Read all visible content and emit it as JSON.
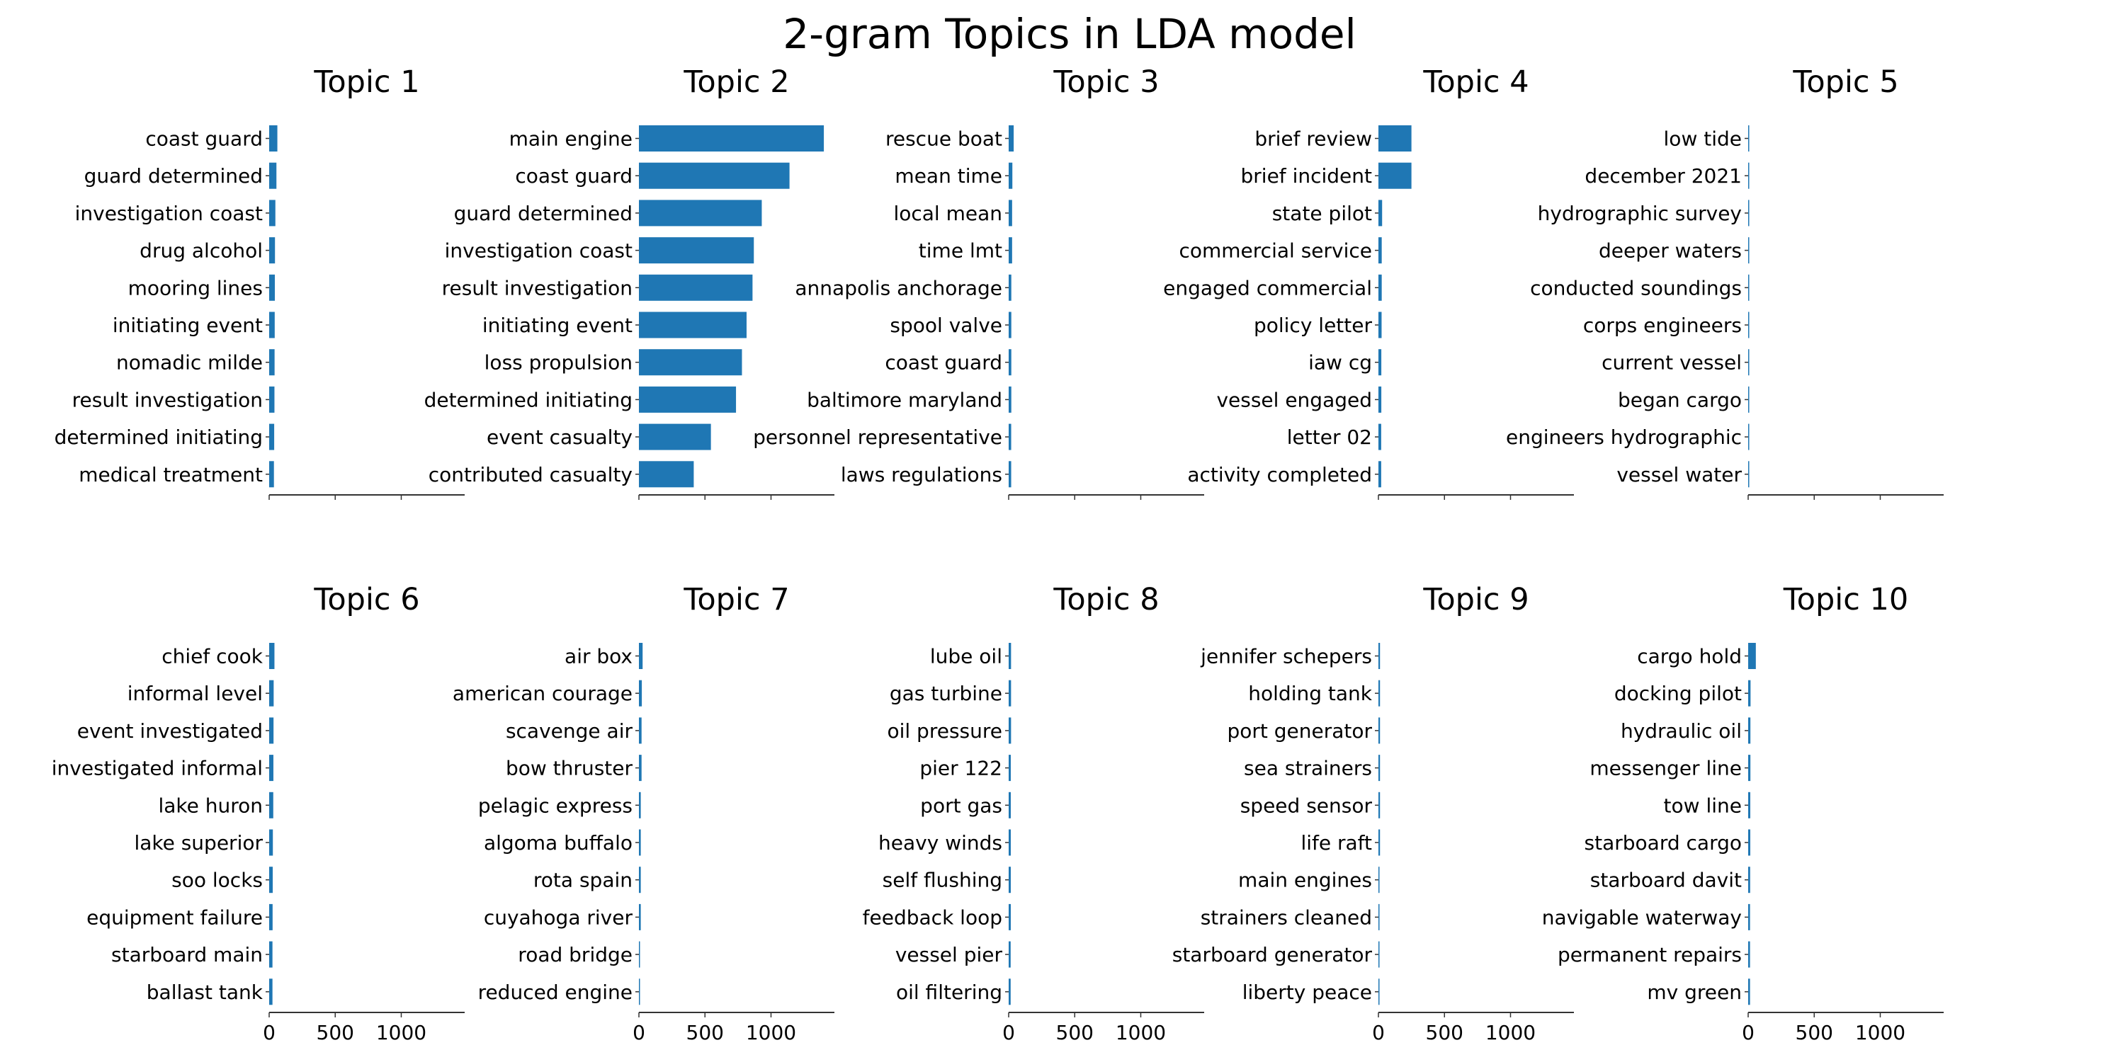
{
  "figure": {
    "title": "2-gram Topics in LDA model"
  },
  "bar_color": "#1f77b4",
  "chart_data": [
    {
      "type": "bar",
      "title": "Topic 1",
      "xlim": [
        0,
        1480
      ],
      "categories": [
        "coast guard",
        "guard determined",
        "investigation coast",
        "drug alcohol",
        "mooring lines",
        "initiating event",
        "nomadic milde",
        "result investigation",
        "determined initiating",
        "medical treatment"
      ],
      "values": [
        62,
        55,
        47,
        44,
        43,
        42,
        41,
        40,
        38,
        36
      ],
      "xticks": [
        0,
        500,
        1000
      ],
      "show_tick_labels": false
    },
    {
      "type": "bar",
      "title": "Topic 2",
      "xlim": [
        0,
        1480
      ],
      "categories": [
        "main engine",
        "coast guard",
        "guard determined",
        "investigation coast",
        "result investigation",
        "initiating event",
        "loss propulsion",
        "determined initiating",
        "event casualty",
        "contributed casualty"
      ],
      "values": [
        1400,
        1140,
        930,
        870,
        860,
        815,
        780,
        735,
        545,
        415
      ],
      "xticks": [
        0,
        500,
        1000
      ],
      "show_tick_labels": false
    },
    {
      "type": "bar",
      "title": "Topic 3",
      "xlim": [
        0,
        1480
      ],
      "categories": [
        "rescue boat",
        "mean time",
        "local mean",
        "time lmt",
        "annapolis anchorage",
        "spool valve",
        "coast guard",
        "baltimore maryland",
        "personnel representative",
        "laws regulations"
      ],
      "values": [
        38,
        28,
        26,
        26,
        20,
        20,
        20,
        20,
        19,
        19
      ],
      "xticks": [
        0,
        500,
        1000
      ],
      "show_tick_labels": false
    },
    {
      "type": "bar",
      "title": "Topic 4",
      "xlim": [
        0,
        1480
      ],
      "categories": [
        "brief review",
        "brief incident",
        "state pilot",
        "commercial service",
        "engaged commercial",
        "policy letter",
        "iaw cg",
        "vessel engaged",
        "letter 02",
        "activity completed"
      ],
      "values": [
        250,
        250,
        28,
        25,
        25,
        24,
        22,
        22,
        21,
        21
      ],
      "xticks": [
        0,
        500,
        1000
      ],
      "show_tick_labels": false
    },
    {
      "type": "bar",
      "title": "Topic 5",
      "xlim": [
        0,
        1480
      ],
      "categories": [
        "low tide",
        "december 2021",
        "hydrographic survey",
        "deeper waters",
        "conducted soundings",
        "corps engineers",
        "current vessel",
        "began cargo",
        "engineers hydrographic",
        "vessel water"
      ],
      "values": [
        4,
        4,
        4,
        4,
        4,
        4,
        4,
        4,
        4,
        4
      ],
      "xticks": [
        0,
        500,
        1000
      ],
      "show_tick_labels": false
    },
    {
      "type": "bar",
      "title": "Topic 6",
      "xlim": [
        0,
        1480
      ],
      "categories": [
        "chief cook",
        "informal level",
        "event investigated",
        "investigated informal",
        "lake huron",
        "lake superior",
        "soo locks",
        "equipment failure",
        "starboard main",
        "ballast tank"
      ],
      "values": [
        40,
        34,
        33,
        32,
        31,
        28,
        27,
        26,
        25,
        25
      ],
      "xticks": [
        0,
        500,
        1000
      ],
      "show_tick_labels": true
    },
    {
      "type": "bar",
      "title": "Topic 7",
      "xlim": [
        0,
        1480
      ],
      "categories": [
        "air box",
        "american courage",
        "scavenge air",
        "bow thruster",
        "pelagic express",
        "algoma buffalo",
        "rota spain",
        "cuyahoga river",
        "road bridge",
        "reduced engine"
      ],
      "values": [
        28,
        22,
        20,
        20,
        14,
        14,
        14,
        14,
        6,
        6
      ],
      "xticks": [
        0,
        500,
        1000
      ],
      "show_tick_labels": true
    },
    {
      "type": "bar",
      "title": "Topic 8",
      "xlim": [
        0,
        1480
      ],
      "categories": [
        "lube oil",
        "gas turbine",
        "oil pressure",
        "pier 122",
        "port gas",
        "heavy winds",
        "self flushing",
        "feedback loop",
        "vessel pier",
        "oil filtering"
      ],
      "values": [
        18,
        18,
        18,
        16,
        16,
        16,
        16,
        16,
        15,
        15
      ],
      "xticks": [
        0,
        500,
        1000
      ],
      "show_tick_labels": true
    },
    {
      "type": "bar",
      "title": "Topic 9",
      "xlim": [
        0,
        1480
      ],
      "categories": [
        "jennifer schepers",
        "holding tank",
        "port generator",
        "sea strainers",
        "speed sensor",
        "life raft",
        "main engines",
        "strainers cleaned",
        "starboard generator",
        "liberty peace"
      ],
      "values": [
        12,
        12,
        12,
        12,
        12,
        12,
        8,
        8,
        8,
        8
      ],
      "xticks": [
        0,
        500,
        1000
      ],
      "show_tick_labels": true
    },
    {
      "type": "bar",
      "title": "Topic 10",
      "xlim": [
        0,
        1480
      ],
      "categories": [
        "cargo hold",
        "docking pilot",
        "hydraulic oil",
        "messenger line",
        "tow line",
        "starboard cargo",
        "starboard davit",
        "navigable waterway",
        "permanent repairs",
        "mv green"
      ],
      "values": [
        58,
        18,
        17,
        17,
        16,
        16,
        15,
        14,
        14,
        14
      ],
      "xticks": [
        0,
        500,
        1000
      ],
      "show_tick_labels": true
    }
  ]
}
